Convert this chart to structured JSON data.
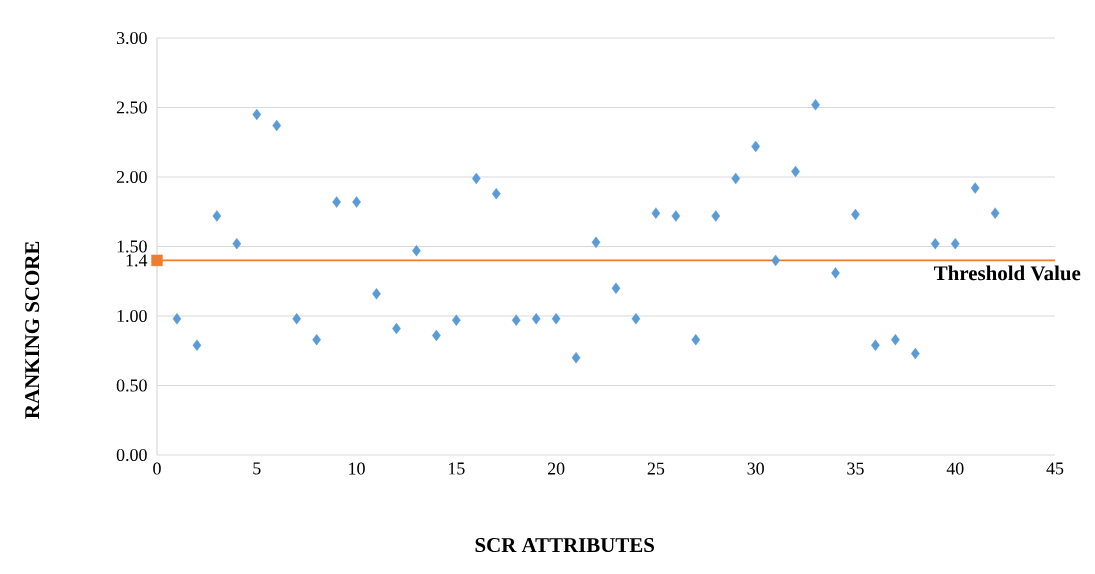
{
  "chart_data": {
    "type": "scatter",
    "xlabel": "SCR ATTRIBUTES",
    "ylabel": "RANKING SCORE",
    "x": [
      1,
      2,
      3,
      4,
      5,
      6,
      7,
      8,
      9,
      10,
      11,
      12,
      13,
      14,
      15,
      16,
      17,
      18,
      19,
      20,
      21,
      22,
      23,
      24,
      25,
      26,
      27,
      28,
      29,
      30,
      31,
      32,
      33,
      34,
      35,
      36,
      37,
      38,
      39,
      40,
      41,
      42
    ],
    "series": [
      {
        "color": "#5b9bd5",
        "values": [
          0.98,
          0.79,
          1.72,
          1.52,
          2.45,
          2.37,
          0.98,
          0.83,
          1.82,
          1.82,
          1.16,
          0.91,
          1.47,
          0.86,
          0.97,
          1.99,
          1.88,
          0.97,
          0.98,
          0.98,
          0.7,
          1.53,
          1.2,
          0.98,
          1.74,
          1.72,
          0.83,
          1.72,
          1.99,
          2.22,
          1.4,
          2.04,
          2.52,
          1.31,
          1.73,
          0.79,
          0.83,
          0.73,
          1.52,
          1.52,
          1.92,
          1.74
        ]
      },
      {
        "color": "#ed7d31",
        "marker": "square",
        "x": [
          0
        ],
        "values": [
          1.4
        ]
      }
    ],
    "marker": "diamond",
    "xlim": [
      0,
      45
    ],
    "xticks": [
      0,
      5,
      10,
      15,
      20,
      25,
      30,
      35,
      40,
      45
    ],
    "ylim": [
      0,
      3
    ],
    "yticks": [
      {
        "value": 0,
        "label": "0.00"
      },
      {
        "value": 0.5,
        "label": "0.50"
      },
      {
        "value": 1,
        "label": "1.00"
      },
      {
        "value": 1.4,
        "label": "1.4"
      },
      {
        "value": 1.5,
        "label": "1.50"
      },
      {
        "value": 2,
        "label": "2.00"
      },
      {
        "value": 2.5,
        "label": "2.50"
      },
      {
        "value": 3,
        "label": "3.00"
      }
    ],
    "grid": "y",
    "ref_lines": [
      {
        "axis": "y",
        "value": 1.4,
        "label": "Threshold Value",
        "color": "#ed7d31"
      }
    ]
  }
}
